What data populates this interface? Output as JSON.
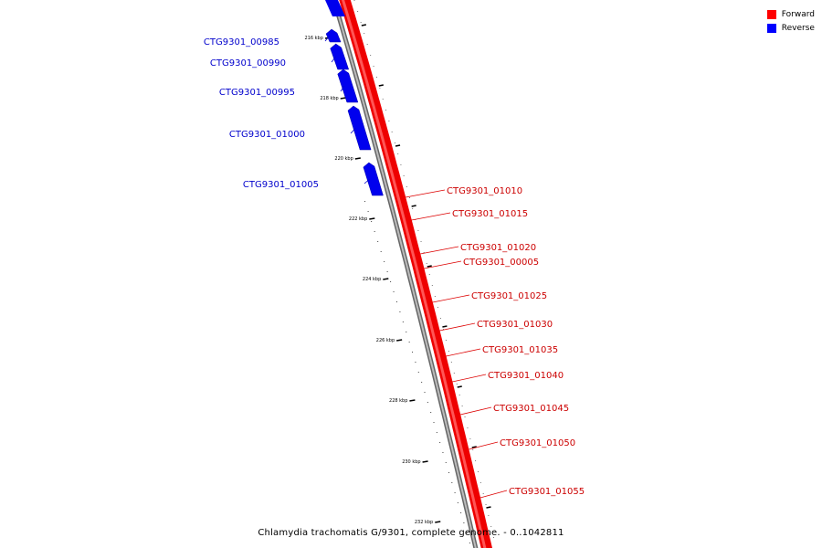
{
  "caption": "Chlamydia trachomatis G/9301, complete genome. - 0..1042811",
  "legend": {
    "forward": {
      "label": "Forward",
      "color": "#ff0000"
    },
    "reverse": {
      "label": "Reverse",
      "color": "#0000ff"
    }
  },
  "scale_labels": [
    "216 kbp",
    "218 kbp",
    "220 kbp",
    "222 kbp",
    "224 kbp",
    "226 kbp",
    "228 kbp",
    "230 kbp",
    "232 kbp"
  ],
  "reverse_genes": [
    "CTG9301_00985",
    "CTG9301_00990",
    "CTG9301_00995",
    "CTG9301_01000",
    "CTG9301_01005"
  ],
  "forward_genes": [
    "CTG9301_01010",
    "CTG9301_01015",
    "CTG9301_01020",
    "CTG9301_00005",
    "CTG9301_01025",
    "CTG9301_01030",
    "CTG9301_01035",
    "CTG9301_01040",
    "CTG9301_01045",
    "CTG9301_01050",
    "CTG9301_01055"
  ]
}
